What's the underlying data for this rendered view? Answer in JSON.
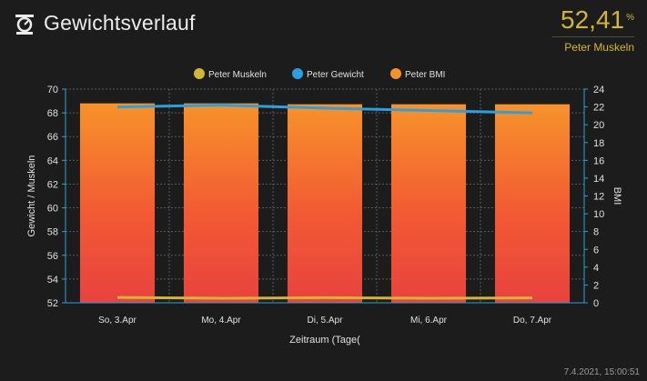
{
  "header": {
    "title": "Gewichtsverlauf"
  },
  "current": {
    "value": "52,41",
    "unit": "%",
    "label": "Peter Muskeln"
  },
  "footer": {
    "timestamp": "7.4.2021, 15:00:51"
  },
  "chart_data": {
    "type": "bar",
    "xlabel": "Zeitraum (Tage(",
    "ylabel": "Gewicht / Muskeln",
    "y2label": "BMI",
    "categories": [
      "So, 3.Apr",
      "Mo, 4.Apr",
      "Di, 5.Apr",
      "Mi, 6.Apr",
      "Do, 7.Apr"
    ],
    "ylim": [
      52,
      70
    ],
    "yticks": [
      52,
      54,
      56,
      58,
      60,
      62,
      64,
      66,
      68,
      70
    ],
    "y2lim": [
      0,
      24
    ],
    "y2ticks": [
      0,
      2,
      4,
      6,
      8,
      10,
      12,
      14,
      16,
      18,
      20,
      22,
      24
    ],
    "grid": true,
    "legend_position": "top",
    "series": [
      {
        "name": "Peter Muskeln",
        "type": "line",
        "axis": "y",
        "color": "#d4b530",
        "values": [
          52.45,
          52.38,
          52.43,
          52.38,
          52.41
        ]
      },
      {
        "name": "Peter Gewicht",
        "type": "line",
        "axis": "y",
        "color": "#2aa0e0",
        "values": [
          68.5,
          68.65,
          68.4,
          68.2,
          68.0
        ]
      },
      {
        "name": "Peter BMI",
        "type": "bar",
        "axis": "y2",
        "color": "#f4922a",
        "values": [
          22.4,
          22.4,
          22.3,
          22.3,
          22.3
        ]
      }
    ]
  }
}
